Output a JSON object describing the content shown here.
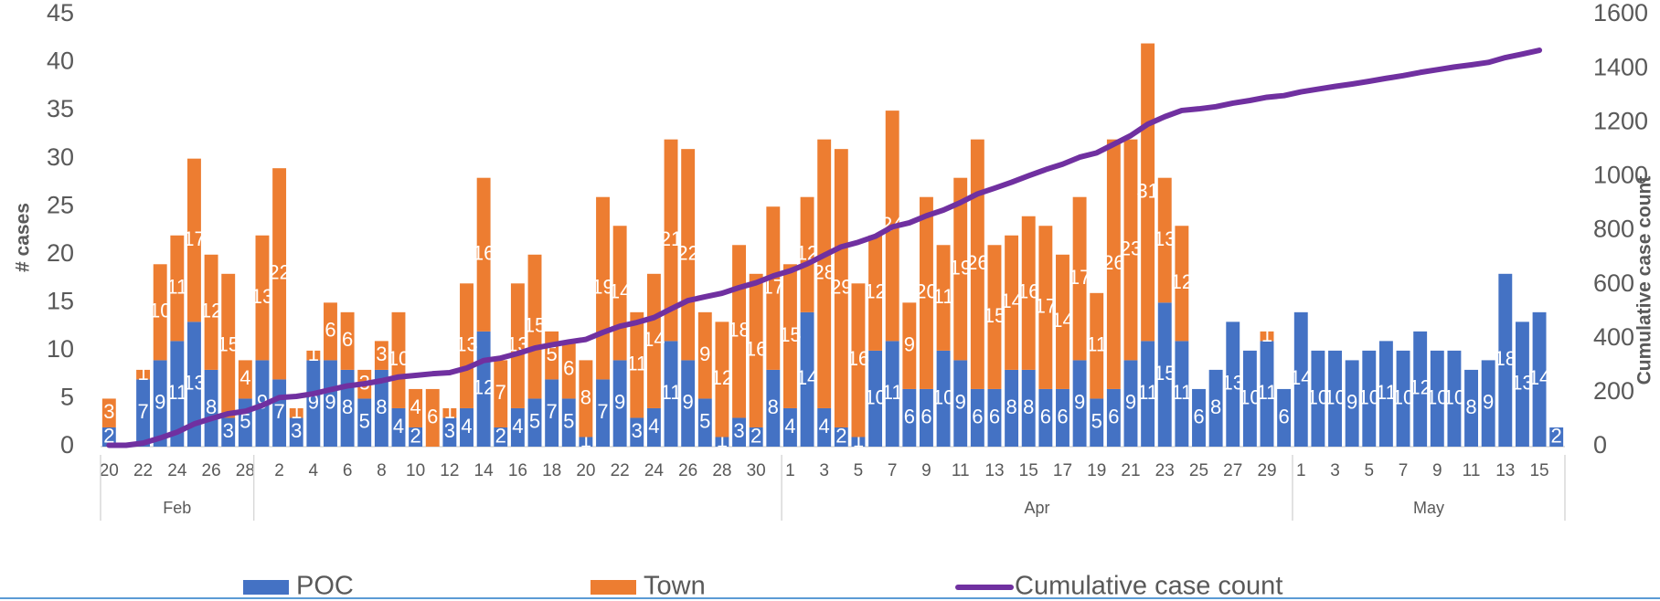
{
  "chart_data": {
    "type": "stacked-bar-line",
    "ylabel": "# cases",
    "y2label": "Cumulative case count",
    "ylim": [
      0,
      45
    ],
    "yticks": [
      0,
      5,
      10,
      15,
      20,
      25,
      30,
      35,
      40,
      45
    ],
    "y2lim": [
      0,
      1600
    ],
    "y2ticks": [
      0,
      200,
      400,
      600,
      800,
      1000,
      1200,
      1400,
      1600
    ],
    "categories": [
      "20",
      null,
      "22",
      null,
      "24",
      null,
      "26",
      null,
      "28",
      null,
      "2",
      null,
      "4",
      null,
      "6",
      null,
      "8",
      null,
      "10",
      null,
      "12",
      null,
      "14",
      null,
      "16",
      null,
      "18",
      null,
      "20",
      null,
      "22",
      null,
      "24",
      null,
      "26",
      null,
      "28",
      null,
      "30",
      null,
      "1",
      null,
      "3",
      null,
      "5",
      null,
      "7",
      null,
      "9",
      null,
      "11",
      null,
      "13",
      null,
      "15",
      null,
      "17",
      null,
      "19",
      null,
      "21",
      null,
      "23",
      null,
      "25",
      null,
      "27",
      null,
      "29",
      null,
      "1",
      null,
      "3",
      null,
      "5",
      null,
      "7",
      null,
      "9",
      null,
      "11",
      null,
      "13",
      null,
      "15",
      null
    ],
    "groups": [
      {
        "label": "Feb",
        "days": 9
      },
      {
        "label": null,
        "days": 31
      },
      {
        "label": "Apr",
        "days": 30
      },
      {
        "label": "May",
        "days": 16
      }
    ],
    "series": [
      {
        "name": "POC",
        "color": "#4472c4",
        "kind": "bar",
        "values": [
          2,
          0,
          7,
          9,
          11,
          13,
          8,
          3,
          5,
          9,
          7,
          3,
          9,
          9,
          8,
          5,
          8,
          4,
          2,
          null,
          3,
          4,
          12,
          2,
          4,
          5,
          7,
          5,
          1,
          7,
          9,
          3,
          4,
          11,
          9,
          5,
          1,
          3,
          2,
          8,
          4,
          14,
          4,
          2,
          1,
          10,
          11,
          6,
          6,
          10,
          9,
          6,
          6,
          8,
          8,
          6,
          6,
          9,
          5,
          6,
          9,
          11,
          15,
          11,
          6,
          8,
          13,
          10,
          11,
          6,
          14,
          10,
          10,
          9,
          10,
          11,
          10,
          12,
          10,
          10,
          8,
          9,
          18,
          13,
          14,
          2
        ]
      },
      {
        "name": "Town",
        "color": "#ed7d31",
        "kind": "bar",
        "values": [
          3,
          null,
          1,
          10,
          11,
          17,
          12,
          15,
          4,
          13,
          22,
          1,
          1,
          6,
          6,
          3,
          3,
          10,
          4,
          6,
          1,
          13,
          16,
          7,
          13,
          15,
          5,
          6,
          8,
          19,
          14,
          11,
          14,
          21,
          22,
          9,
          12,
          18,
          16,
          17,
          15,
          12,
          28,
          29,
          16,
          12,
          24,
          9,
          20,
          11,
          19,
          26,
          15,
          14,
          16,
          17,
          14,
          17,
          11,
          26,
          23,
          31,
          13,
          12,
          null,
          null,
          null,
          null,
          1,
          null,
          null,
          null,
          null,
          null,
          null,
          null,
          null,
          null,
          null,
          null,
          null,
          null,
          null,
          null,
          null,
          null
        ]
      },
      {
        "name": "Cumulative case count",
        "color": "#7030a0",
        "kind": "line",
        "axis": "y2",
        "values": [
          5,
          5,
          13,
          32,
          54,
          84,
          104,
          122,
          131,
          153,
          182,
          186,
          196,
          211,
          225,
          233,
          244,
          258,
          264,
          270,
          274,
          291,
          319,
          328,
          345,
          365,
          377,
          388,
          397,
          423,
          446,
          460,
          478,
          510,
          541,
          555,
          568,
          589,
          607,
          632,
          651,
          677,
          709,
          740,
          757,
          779,
          814,
          829,
          855,
          876,
          904,
          936,
          957,
          979,
          1003,
          1026,
          1046,
          1072,
          1088,
          1120,
          1152,
          1194,
          1222,
          1245,
          1251,
          1259,
          1272,
          1282,
          1294,
          1300,
          1314,
          1324,
          1334,
          1343,
          1353,
          1364,
          1374,
          1386,
          1396,
          1406,
          1414,
          1423,
          1441,
          1454,
          1468,
          null
        ]
      }
    ],
    "legend": "bottom"
  }
}
